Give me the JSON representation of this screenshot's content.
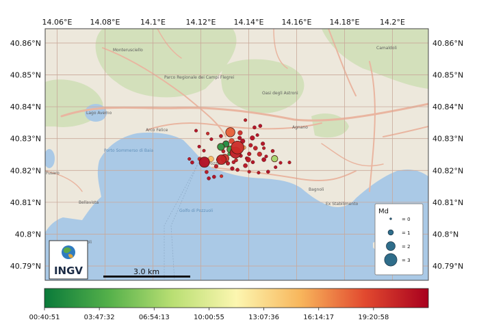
{
  "map": {
    "x_ticks": [
      "14.06°E",
      "14.08°E",
      "14.1°E",
      "14.12°E",
      "14.14°E",
      "14.16°E",
      "14.18°E",
      "14.2°E"
    ],
    "y_ticks": [
      "40.86°N",
      "40.85°N",
      "40.84°N",
      "40.83°N",
      "40.82°N",
      "40.81°N",
      "40.8°N",
      "40.79°N"
    ],
    "places": [
      {
        "name": "Monterusciello"
      },
      {
        "name": "Arco Felice"
      },
      {
        "name": "Agnano"
      },
      {
        "name": "Bagnoli"
      },
      {
        "name": "Pozzuoli"
      },
      {
        "name": "Bacoli"
      },
      {
        "name": "Fusaro"
      },
      {
        "name": "Bellavista"
      },
      {
        "name": "Lago Averno"
      },
      {
        "name": "Parco Regionale dei Campi Flegrei"
      },
      {
        "name": "Golfo di Pozzuoli"
      },
      {
        "name": "Porto Sommerso di Baia"
      },
      {
        "name": "Oasi degli Astroni"
      },
      {
        "name": "Camaldoli"
      },
      {
        "name": "Ex Stabilimento"
      }
    ],
    "scale_bar": "3.0 km",
    "logo": "INGV"
  },
  "legend": {
    "title": "Md",
    "items": [
      {
        "label": "= 0",
        "magnitude": 0
      },
      {
        "label": "= 1",
        "magnitude": 1
      },
      {
        "label": "= 2",
        "magnitude": 2
      },
      {
        "label": "= 3",
        "magnitude": 3
      }
    ]
  },
  "colorbar": {
    "labels": [
      "00:40:51",
      "03:47:32",
      "06:54:13",
      "10:00:55",
      "13:07:36",
      "16:14:17",
      "19:20:58"
    ],
    "colors": [
      "#0a7a3a",
      "#54b04a",
      "#b9df73",
      "#fcf6b0",
      "#f8b65c",
      "#e24a2f",
      "#a8001e"
    ]
  },
  "colors": {
    "land": "#ede8dc",
    "water": "#aac9e6",
    "park": "#d3e0bb",
    "road": "#e9b5a0"
  },
  "chart_data": {
    "type": "scatter",
    "xlim": [
      14.055,
      14.215
    ],
    "ylim": [
      40.7855,
      40.8645
    ],
    "xlabel": "",
    "ylabel": "",
    "size_variable": "Md",
    "color_variable": "time",
    "grid": true,
    "legend": "bottom-right",
    "events": [
      {
        "lon": 14.1353,
        "lat": 40.8272,
        "md": 3.1,
        "time_frac": 0.9
      },
      {
        "lon": 14.1345,
        "lat": 40.8256,
        "md": 2.6,
        "time_frac": 0.93
      },
      {
        "lon": 14.1323,
        "lat": 40.832,
        "md": 2.1,
        "time_frac": 0.8
      },
      {
        "lon": 14.1286,
        "lat": 40.8234,
        "md": 2.2,
        "time_frac": 0.92
      },
      {
        "lon": 14.1215,
        "lat": 40.8226,
        "md": 2.4,
        "time_frac": 0.97
      },
      {
        "lon": 14.13,
        "lat": 40.8238,
        "md": 1.8,
        "time_frac": 0.88
      },
      {
        "lon": 14.1284,
        "lat": 40.8274,
        "md": 1.5,
        "time_frac": 0.08
      },
      {
        "lon": 14.1305,
        "lat": 40.8283,
        "md": 1.3,
        "time_frac": 0.05
      },
      {
        "lon": 14.1323,
        "lat": 40.8266,
        "md": 1.4,
        "time_frac": 0.12
      },
      {
        "lon": 14.1329,
        "lat": 40.8292,
        "md": 1.0,
        "time_frac": 0.85
      },
      {
        "lon": 14.1508,
        "lat": 40.8237,
        "md": 1.3,
        "time_frac": 0.3
      },
      {
        "lon": 14.1242,
        "lat": 40.8236,
        "md": 1.1,
        "time_frac": 0.65
      },
      {
        "lon": 14.1398,
        "lat": 40.8234,
        "md": 0.9,
        "time_frac": 0.95
      },
      {
        "lon": 14.1364,
        "lat": 40.8318,
        "md": 0.8,
        "time_frac": 0.9
      },
      {
        "lon": 14.1375,
        "lat": 40.8292,
        "md": 0.8,
        "time_frac": 0.97
      },
      {
        "lon": 14.1415,
        "lat": 40.8302,
        "md": 0.8,
        "time_frac": 0.97
      },
      {
        "lon": 14.1428,
        "lat": 40.827,
        "md": 0.7,
        "time_frac": 0.94
      },
      {
        "lon": 14.1445,
        "lat": 40.8251,
        "md": 0.8,
        "time_frac": 0.92
      },
      {
        "lon": 14.1463,
        "lat": 40.8234,
        "md": 0.7,
        "time_frac": 0.98
      },
      {
        "lon": 14.1386,
        "lat": 40.8215,
        "md": 0.7,
        "time_frac": 0.96
      },
      {
        "lon": 14.1331,
        "lat": 40.8206,
        "md": 0.6,
        "time_frac": 0.98
      },
      {
        "lon": 14.1264,
        "lat": 40.8213,
        "md": 0.6,
        "time_frac": 0.95
      },
      {
        "lon": 14.1195,
        "lat": 40.8236,
        "md": 0.6,
        "time_frac": 0.9
      },
      {
        "lon": 14.1164,
        "lat": 40.8225,
        "md": 0.5,
        "time_frac": 0.97
      },
      {
        "lon": 14.1152,
        "lat": 40.8236,
        "md": 0.4,
        "time_frac": 0.96
      },
      {
        "lon": 14.1224,
        "lat": 40.8195,
        "md": 0.5,
        "time_frac": 0.95
      },
      {
        "lon": 14.1233,
        "lat": 40.8175,
        "md": 0.5,
        "time_frac": 0.97
      },
      {
        "lon": 14.1255,
        "lat": 40.818,
        "md": 0.5,
        "time_frac": 0.97
      },
      {
        "lon": 14.1286,
        "lat": 40.8182,
        "md": 0.4,
        "time_frac": 0.9
      },
      {
        "lon": 14.1353,
        "lat": 40.8202,
        "md": 0.5,
        "time_frac": 0.96
      },
      {
        "lon": 14.1402,
        "lat": 40.8196,
        "md": 0.4,
        "time_frac": 0.95
      },
      {
        "lon": 14.1441,
        "lat": 40.8193,
        "md": 0.4,
        "time_frac": 0.97
      },
      {
        "lon": 14.1481,
        "lat": 40.8196,
        "md": 0.5,
        "time_frac": 0.98
      },
      {
        "lon": 14.1533,
        "lat": 40.8224,
        "md": 0.4,
        "time_frac": 0.97
      },
      {
        "lon": 14.15,
        "lat": 40.8261,
        "md": 0.5,
        "time_frac": 0.96
      },
      {
        "lon": 14.1459,
        "lat": 40.8284,
        "md": 0.6,
        "time_frac": 0.97
      },
      {
        "lon": 14.1424,
        "lat": 40.8335,
        "md": 0.5,
        "time_frac": 0.97
      },
      {
        "lon": 14.1386,
        "lat": 40.8358,
        "md": 0.4,
        "time_frac": 0.95
      },
      {
        "lon": 14.1448,
        "lat": 40.834,
        "md": 0.5,
        "time_frac": 0.98
      },
      {
        "lon": 14.1284,
        "lat": 40.8308,
        "md": 0.5,
        "time_frac": 0.96
      },
      {
        "lon": 14.1244,
        "lat": 40.8298,
        "md": 0.4,
        "time_frac": 0.97
      },
      {
        "lon": 14.1229,
        "lat": 40.8316,
        "md": 0.4,
        "time_frac": 0.92
      },
      {
        "lon": 14.118,
        "lat": 40.8325,
        "md": 0.4,
        "time_frac": 0.97
      },
      {
        "lon": 14.1213,
        "lat": 40.8262,
        "md": 0.4,
        "time_frac": 0.96
      },
      {
        "lon": 14.1193,
        "lat": 40.8275,
        "md": 0.4,
        "time_frac": 0.98
      },
      {
        "lon": 14.1402,
        "lat": 40.8252,
        "md": 0.6,
        "time_frac": 0.96
      },
      {
        "lon": 14.1367,
        "lat": 40.8246,
        "md": 0.5,
        "time_frac": 0.97
      },
      {
        "lon": 14.1319,
        "lat": 40.8252,
        "md": 0.5,
        "time_frac": 0.1
      },
      {
        "lon": 14.1294,
        "lat": 40.826,
        "md": 0.5,
        "time_frac": 0.95
      },
      {
        "lon": 14.1347,
        "lat": 40.8232,
        "md": 0.5,
        "time_frac": 0.93
      },
      {
        "lon": 14.1408,
        "lat": 40.8279,
        "md": 0.6,
        "time_frac": 0.96
      },
      {
        "lon": 14.1362,
        "lat": 40.8302,
        "md": 0.6,
        "time_frac": 0.98
      },
      {
        "lon": 14.1436,
        "lat": 40.8311,
        "md": 0.4,
        "time_frac": 0.97
      },
      {
        "lon": 14.1463,
        "lat": 40.827,
        "md": 0.4,
        "time_frac": 0.95
      },
      {
        "lon": 14.1512,
        "lat": 40.821,
        "md": 0.4,
        "time_frac": 0.97
      },
      {
        "lon": 14.157,
        "lat": 40.8225,
        "md": 0.4,
        "time_frac": 0.96
      },
      {
        "lon": 14.1272,
        "lat": 40.8234,
        "md": 0.5,
        "time_frac": 0.97
      },
      {
        "lon": 14.1313,
        "lat": 40.8222,
        "md": 0.6,
        "time_frac": 0.95
      },
      {
        "lon": 14.1417,
        "lat": 40.8226,
        "md": 0.5,
        "time_frac": 0.98
      },
      {
        "lon": 14.138,
        "lat": 40.8272,
        "md": 0.6,
        "time_frac": 0.7
      },
      {
        "lon": 14.1392,
        "lat": 40.8238,
        "md": 0.5,
        "time_frac": 0.97
      },
      {
        "lon": 14.1337,
        "lat": 40.8226,
        "md": 0.5,
        "time_frac": 0.96
      },
      {
        "lon": 14.1473,
        "lat": 40.8244,
        "md": 0.4,
        "time_frac": 0.97
      }
    ]
  }
}
